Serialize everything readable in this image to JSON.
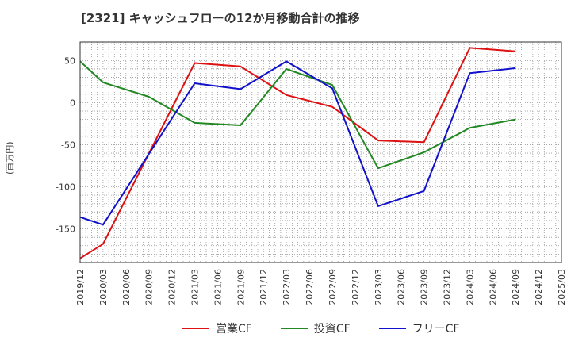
{
  "chart_data": {
    "type": "line",
    "title": "[2321]  キャッシュフローの12か月移動合計の推移",
    "ylabel": "(百万円)",
    "xlabel": "",
    "ylim": [
      -190,
      72
    ],
    "yticks": [
      50,
      0,
      -50,
      -100,
      -150
    ],
    "grid": true,
    "legend_position": "bottom",
    "x": [
      "2019/12",
      "2020/03",
      "2020/06",
      "2020/09",
      "2020/12",
      "2021/03",
      "2021/06",
      "2021/09",
      "2021/12",
      "2022/03",
      "2022/06",
      "2022/09",
      "2022/12",
      "2023/03",
      "2023/06",
      "2023/09",
      "2023/12",
      "2024/03",
      "2024/06",
      "2024/09",
      "2024/12",
      "2025/03"
    ],
    "series": [
      {
        "name": "営業CF",
        "color": "#dd1111",
        "values": [
          -185,
          -168,
          null,
          null,
          null,
          47,
          null,
          43,
          null,
          9,
          null,
          -5,
          null,
          -45,
          null,
          -47,
          null,
          65,
          null,
          61,
          null,
          null
        ]
      },
      {
        "name": "投資CF",
        "color": "#228822",
        "values": [
          49,
          24,
          null,
          7,
          null,
          -24,
          null,
          -27,
          null,
          40,
          null,
          21,
          null,
          -78,
          null,
          -59,
          null,
          -30,
          null,
          -20,
          null,
          null
        ]
      },
      {
        "name": "フリーCF",
        "color": "#1111cc",
        "values": [
          -136,
          -145,
          null,
          null,
          null,
          23,
          null,
          16,
          null,
          49,
          null,
          17,
          null,
          -123,
          null,
          -105,
          null,
          35,
          null,
          41,
          null,
          null
        ]
      }
    ]
  }
}
